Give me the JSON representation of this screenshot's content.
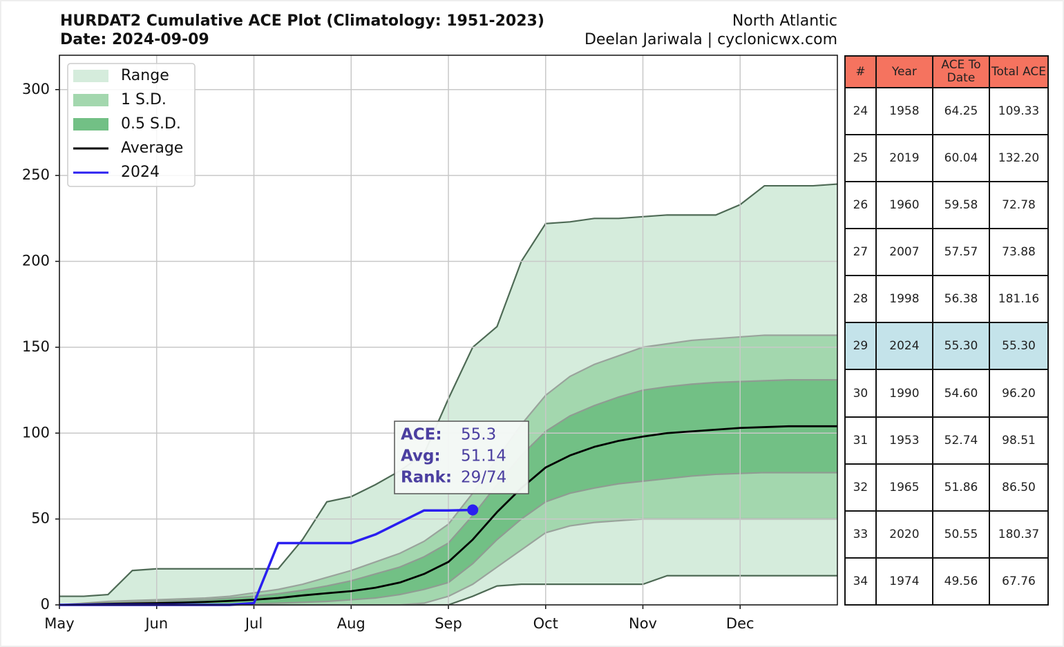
{
  "chart_data": {
    "type": "band-line",
    "title": "HURDAT2 Cumulative ACE Plot (Climatology: 1951-2023)",
    "subtitle": "Date: 2024-09-09",
    "region": "North Atlantic",
    "credit": "Deelan Jariwala | cyclonicwx.com",
    "x": [
      "May",
      null,
      null,
      null,
      "Jun",
      null,
      null,
      null,
      "Jul",
      null,
      null,
      null,
      "Aug",
      null,
      null,
      null,
      "Sep",
      null,
      null,
      null,
      "Oct",
      null,
      null,
      null,
      "Nov",
      null,
      null,
      null,
      "Dec",
      null,
      null,
      null,
      null
    ],
    "ylim": [
      0,
      320
    ],
    "yticks": [
      0,
      50,
      100,
      150,
      200,
      250,
      300
    ],
    "grid": true,
    "legend": "upper left",
    "series": [
      {
        "name": "Range",
        "color": "#d5ecdc",
        "edge": "#4e6a55",
        "upper": [
          5,
          5,
          6,
          20,
          21,
          21,
          21,
          21,
          21,
          21,
          38,
          60,
          63,
          70,
          78,
          88,
          120,
          150,
          162,
          200,
          222,
          223,
          225,
          225,
          226,
          227,
          227,
          227,
          233,
          244,
          244,
          244,
          245
        ],
        "lower": [
          0,
          0,
          0,
          0,
          0,
          0,
          0,
          0,
          0,
          0,
          0,
          0,
          0,
          0,
          0,
          0,
          0,
          5,
          11,
          12,
          12,
          12,
          12,
          12,
          12,
          17,
          17,
          17,
          17,
          17,
          17,
          17,
          17
        ]
      },
      {
        "name": "1 S.D.",
        "color": "#a3d7ae",
        "edge": "#9aa39c",
        "upper": [
          0,
          1,
          2,
          2.5,
          3,
          3.5,
          4,
          5,
          7,
          9,
          12,
          16,
          20,
          25,
          30,
          37,
          47,
          65,
          85,
          105,
          122,
          133,
          140,
          145,
          150,
          152,
          154,
          155,
          156,
          157,
          157,
          157,
          157
        ],
        "lower": [
          0,
          0,
          0,
          0,
          0,
          0,
          0,
          0,
          0,
          0,
          0,
          0,
          0,
          0,
          0,
          1,
          5,
          12,
          22,
          32,
          42,
          46,
          48,
          49,
          50,
          50,
          50,
          50,
          50,
          50,
          50,
          50,
          50
        ]
      },
      {
        "name": "0.5 S.D.",
        "color": "#72c085",
        "edge": "#8f9c92",
        "upper": [
          0,
          0.5,
          1,
          1.5,
          2,
          2.5,
          3,
          4,
          5,
          6.5,
          8.5,
          11,
          14,
          18,
          22,
          28,
          36,
          52,
          70,
          87,
          101,
          110,
          116,
          121,
          125,
          127,
          128.5,
          129.5,
          130,
          130.5,
          131,
          131,
          131
        ],
        "lower": [
          0,
          0,
          0,
          0,
          0,
          0,
          0,
          0,
          0.5,
          1,
          1.5,
          2,
          3,
          4,
          6,
          9,
          13,
          24,
          38,
          50,
          60,
          65,
          68,
          70.5,
          72,
          73.5,
          75,
          76,
          76.5,
          77,
          77,
          77,
          77
        ]
      },
      {
        "name": "Average",
        "color": "#000000",
        "values": [
          0,
          0.3,
          0.6,
          0.8,
          1,
          1.3,
          1.7,
          2.3,
          3,
          4,
          5.5,
          6.8,
          8,
          10,
          13,
          18,
          25,
          38,
          54,
          68,
          80,
          87,
          92,
          95.5,
          98,
          100,
          101,
          102,
          103,
          103.5,
          104,
          104,
          104
        ]
      },
      {
        "name": "2024",
        "color": "#2a1ff0",
        "values": [
          0,
          0,
          0,
          0,
          0,
          0,
          0,
          0,
          1,
          36,
          36,
          36,
          36,
          41,
          48,
          55,
          55,
          55.3,
          null,
          null,
          null,
          null,
          null,
          null,
          null,
          null,
          null,
          null,
          null,
          null,
          null,
          null,
          null
        ]
      }
    ],
    "annotation": [
      {
        "label": "ACE:",
        "value": 55.3
      },
      {
        "label": "Avg:",
        "value": 51.14
      },
      {
        "label": "Rank:",
        "value": "29/74"
      }
    ],
    "table": {
      "header": [
        "#",
        "Year",
        "ACE To Date",
        "Total ACE"
      ],
      "rows": [
        [
          "24",
          "1958",
          "64.25",
          "109.33"
        ],
        [
          "25",
          "2019",
          "60.04",
          "132.20"
        ],
        [
          "26",
          "1960",
          "59.58",
          "72.78"
        ],
        [
          "27",
          "2007",
          "57.57",
          "73.88"
        ],
        [
          "28",
          "1998",
          "56.38",
          "181.16"
        ],
        [
          "29",
          "2024",
          "55.30",
          "55.30"
        ],
        [
          "30",
          "1990",
          "54.60",
          "96.20"
        ],
        [
          "31",
          "1953",
          "52.74",
          "98.51"
        ],
        [
          "32",
          "1965",
          "51.86",
          "86.50"
        ],
        [
          "33",
          "2020",
          "50.55",
          "180.37"
        ],
        [
          "34",
          "1974",
          "49.56",
          "67.76"
        ]
      ]
    }
  }
}
